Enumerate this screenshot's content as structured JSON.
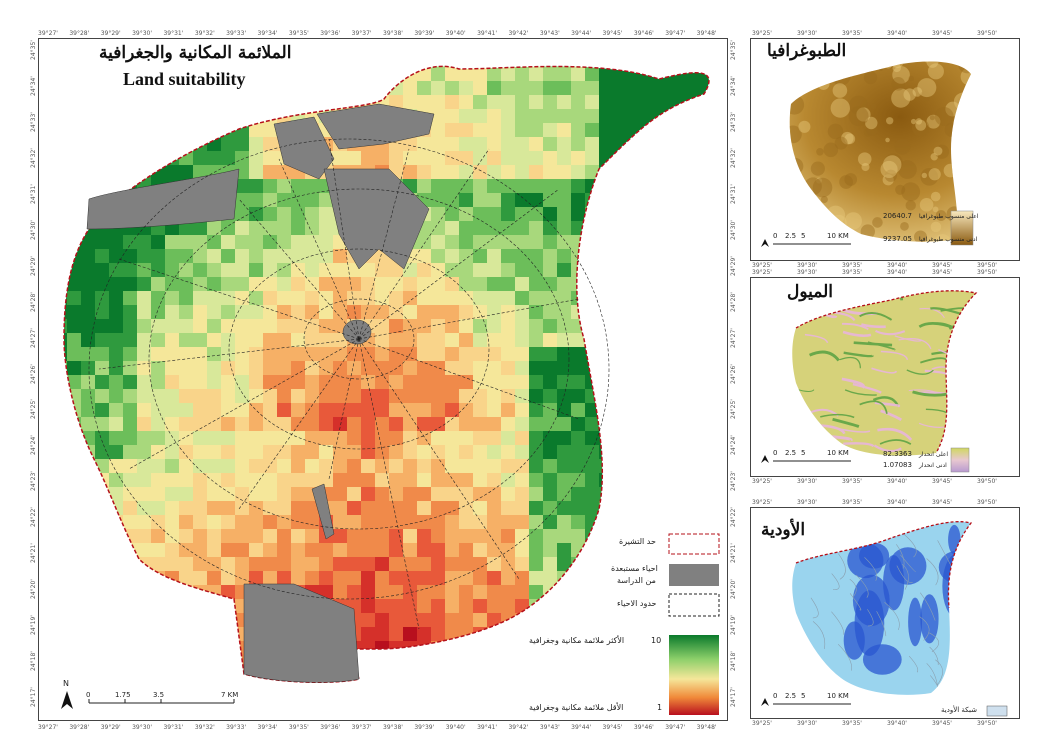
{
  "main_map": {
    "title_ar": "الملائمة المكانية والجغرافية",
    "title_en": "Land suitability",
    "legend": {
      "boundary_label": "حد التشيرة",
      "excluded_label_1": "احياء مستبعدة",
      "excluded_label_2": "من الدراسة",
      "districts_label": "حدود الاحياء",
      "high_label": "الأكثر ملائمة مكانية وجغرافية",
      "high_value": "10",
      "low_label": "الأقل ملائمة مكانية وجغرافية",
      "low_value": "1"
    },
    "scale": {
      "labels": [
        "0",
        "1.75",
        "3.5",
        "7 KM"
      ]
    },
    "north": "N",
    "top_ticks": [
      "39°27'",
      "39°28'",
      "39°29'",
      "39°30'",
      "39°31'",
      "39°32'",
      "39°33'",
      "39°34'",
      "39°35'",
      "39°36'",
      "39°37'",
      "39°38'",
      "39°39'",
      "39°40'",
      "39°41'",
      "39°42'",
      "39°43'",
      "39°44'",
      "39°45'",
      "39°46'",
      "39°47'",
      "39°48'"
    ],
    "left_ticks": [
      "24°35'",
      "24°34'",
      "24°33'",
      "24°32'",
      "24°31'",
      "24°30'",
      "24°29'",
      "24°28'",
      "24°27'",
      "24°26'",
      "24°25'",
      "24°24'",
      "24°23'",
      "24°22'",
      "24°21'",
      "24°20'",
      "24°19'",
      "24°18'",
      "24°17'"
    ]
  },
  "topography": {
    "title": "الطبوغرافيا",
    "high_value": "20640.7",
    "high_label": "اعلى منسوب طبوغرافيا",
    "low_value": "9237.05",
    "low_label": "ادنى منسوب طبوغرافيا",
    "scale_labels": [
      "0",
      "2.5",
      "5",
      "10 KM"
    ],
    "ticks": [
      "39°25'",
      "39°30'",
      "39°35'",
      "39°40'",
      "39°45'",
      "39°50'"
    ]
  },
  "slope": {
    "title": "الميول",
    "high_value": "82.3363",
    "high_label": "اعلى انحدار",
    "low_value": "1.07083",
    "low_label": "ادنى انحدار",
    "scale_labels": [
      "0",
      "2.5",
      "5",
      "10 KM"
    ],
    "ticks": [
      "39°25'",
      "39°30'",
      "39°35'",
      "39°40'",
      "39°45'",
      "39°50'"
    ]
  },
  "wadis": {
    "title": "الأودية",
    "legend_label": "شبكة الأودية",
    "scale_labels": [
      "0",
      "2.5",
      "5",
      "10 KM"
    ],
    "ticks": [
      "39°25'",
      "39°30'",
      "39°35'",
      "39°40'",
      "39°45'",
      "39°50'"
    ]
  },
  "colors": {
    "high": "#0a7a2c",
    "mid": "#f5e79a",
    "low": "#b80f1e",
    "excluded": "#808080",
    "topo_high": "#8a5a10",
    "topo_low": "#f2dc9a",
    "wadi": "#2a57d0"
  }
}
